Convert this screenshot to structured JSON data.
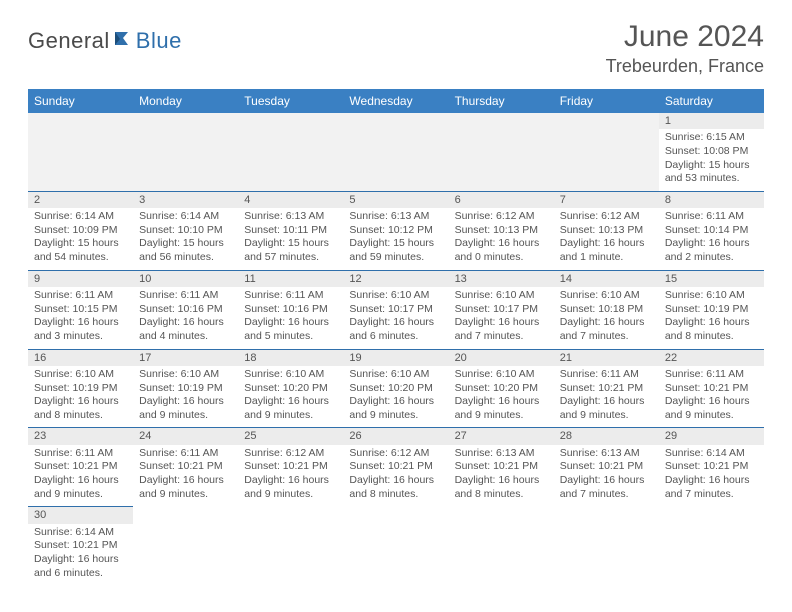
{
  "logo": {
    "text1": "General",
    "text2": "Blue"
  },
  "title": {
    "month": "June 2024",
    "location": "Trebeurden, France"
  },
  "colors": {
    "header_bg": "#3a80c3",
    "header_text": "#ffffff",
    "row_divider": "#2f6fab",
    "cell_border": "#d9d9d9",
    "daynum_bg": "#ececec",
    "lead_bg": "#f2f2f2",
    "text": "#555555"
  },
  "daysOfWeek": [
    "Sunday",
    "Monday",
    "Tuesday",
    "Wednesday",
    "Thursday",
    "Friday",
    "Saturday"
  ],
  "leadingBlanks": 6,
  "trailingBlanks": 6,
  "days": [
    {
      "n": 1,
      "sunrise": "6:15 AM",
      "sunset": "10:08 PM",
      "daylight": "15 hours and 53 minutes."
    },
    {
      "n": 2,
      "sunrise": "6:14 AM",
      "sunset": "10:09 PM",
      "daylight": "15 hours and 54 minutes."
    },
    {
      "n": 3,
      "sunrise": "6:14 AM",
      "sunset": "10:10 PM",
      "daylight": "15 hours and 56 minutes."
    },
    {
      "n": 4,
      "sunrise": "6:13 AM",
      "sunset": "10:11 PM",
      "daylight": "15 hours and 57 minutes."
    },
    {
      "n": 5,
      "sunrise": "6:13 AM",
      "sunset": "10:12 PM",
      "daylight": "15 hours and 59 minutes."
    },
    {
      "n": 6,
      "sunrise": "6:12 AM",
      "sunset": "10:13 PM",
      "daylight": "16 hours and 0 minutes."
    },
    {
      "n": 7,
      "sunrise": "6:12 AM",
      "sunset": "10:13 PM",
      "daylight": "16 hours and 1 minute."
    },
    {
      "n": 8,
      "sunrise": "6:11 AM",
      "sunset": "10:14 PM",
      "daylight": "16 hours and 2 minutes."
    },
    {
      "n": 9,
      "sunrise": "6:11 AM",
      "sunset": "10:15 PM",
      "daylight": "16 hours and 3 minutes."
    },
    {
      "n": 10,
      "sunrise": "6:11 AM",
      "sunset": "10:16 PM",
      "daylight": "16 hours and 4 minutes."
    },
    {
      "n": 11,
      "sunrise": "6:11 AM",
      "sunset": "10:16 PM",
      "daylight": "16 hours and 5 minutes."
    },
    {
      "n": 12,
      "sunrise": "6:10 AM",
      "sunset": "10:17 PM",
      "daylight": "16 hours and 6 minutes."
    },
    {
      "n": 13,
      "sunrise": "6:10 AM",
      "sunset": "10:17 PM",
      "daylight": "16 hours and 7 minutes."
    },
    {
      "n": 14,
      "sunrise": "6:10 AM",
      "sunset": "10:18 PM",
      "daylight": "16 hours and 7 minutes."
    },
    {
      "n": 15,
      "sunrise": "6:10 AM",
      "sunset": "10:19 PM",
      "daylight": "16 hours and 8 minutes."
    },
    {
      "n": 16,
      "sunrise": "6:10 AM",
      "sunset": "10:19 PM",
      "daylight": "16 hours and 8 minutes."
    },
    {
      "n": 17,
      "sunrise": "6:10 AM",
      "sunset": "10:19 PM",
      "daylight": "16 hours and 9 minutes."
    },
    {
      "n": 18,
      "sunrise": "6:10 AM",
      "sunset": "10:20 PM",
      "daylight": "16 hours and 9 minutes."
    },
    {
      "n": 19,
      "sunrise": "6:10 AM",
      "sunset": "10:20 PM",
      "daylight": "16 hours and 9 minutes."
    },
    {
      "n": 20,
      "sunrise": "6:10 AM",
      "sunset": "10:20 PM",
      "daylight": "16 hours and 9 minutes."
    },
    {
      "n": 21,
      "sunrise": "6:11 AM",
      "sunset": "10:21 PM",
      "daylight": "16 hours and 9 minutes."
    },
    {
      "n": 22,
      "sunrise": "6:11 AM",
      "sunset": "10:21 PM",
      "daylight": "16 hours and 9 minutes."
    },
    {
      "n": 23,
      "sunrise": "6:11 AM",
      "sunset": "10:21 PM",
      "daylight": "16 hours and 9 minutes."
    },
    {
      "n": 24,
      "sunrise": "6:11 AM",
      "sunset": "10:21 PM",
      "daylight": "16 hours and 9 minutes."
    },
    {
      "n": 25,
      "sunrise": "6:12 AM",
      "sunset": "10:21 PM",
      "daylight": "16 hours and 9 minutes."
    },
    {
      "n": 26,
      "sunrise": "6:12 AM",
      "sunset": "10:21 PM",
      "daylight": "16 hours and 8 minutes."
    },
    {
      "n": 27,
      "sunrise": "6:13 AM",
      "sunset": "10:21 PM",
      "daylight": "16 hours and 8 minutes."
    },
    {
      "n": 28,
      "sunrise": "6:13 AM",
      "sunset": "10:21 PM",
      "daylight": "16 hours and 7 minutes."
    },
    {
      "n": 29,
      "sunrise": "6:14 AM",
      "sunset": "10:21 PM",
      "daylight": "16 hours and 7 minutes."
    },
    {
      "n": 30,
      "sunrise": "6:14 AM",
      "sunset": "10:21 PM",
      "daylight": "16 hours and 6 minutes."
    }
  ],
  "labels": {
    "sunrise": "Sunrise:",
    "sunset": "Sunset:",
    "daylight": "Daylight:"
  }
}
